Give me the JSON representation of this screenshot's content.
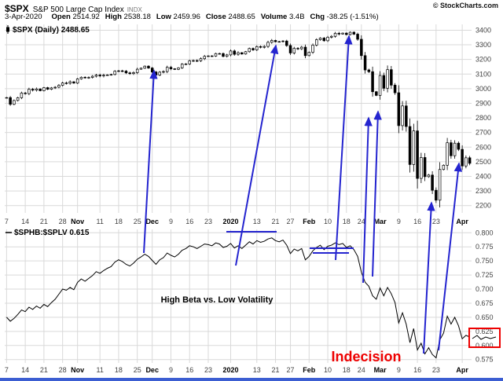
{
  "header": {
    "symbol": "$SPX",
    "name": "S&P 500 Large Cap Index",
    "exchange": "INDX",
    "copyright": "© StockCharts.com",
    "date": "3-Apr-2020",
    "quote": [
      {
        "label": "Open",
        "value": "2514.92"
      },
      {
        "label": "High",
        "value": "2538.18"
      },
      {
        "label": "Low",
        "value": "2459.96"
      },
      {
        "label": "Close",
        "value": "2488.65"
      },
      {
        "label": "Volume",
        "value": "3.4B"
      },
      {
        "label": "Chg",
        "value": "-38.25 (-1.51%)"
      }
    ]
  },
  "chart_data": {
    "type": "multi-panel",
    "num_days": 125,
    "colors": {
      "grid": "#d9d9d9",
      "axis_text": "#444444",
      "month_text": "#000000",
      "series": "#000000",
      "bottom_bar": "#3c5ed2"
    },
    "x_ticks": [
      [
        "7",
        0,
        0
      ],
      [
        "14",
        5,
        0
      ],
      [
        "21",
        10,
        0
      ],
      [
        "28",
        15,
        0
      ],
      [
        "Nov",
        19,
        1
      ],
      [
        "11",
        25,
        0
      ],
      [
        "18",
        30,
        0
      ],
      [
        "25",
        35,
        0
      ],
      [
        "Dec",
        39,
        1
      ],
      [
        "9",
        44,
        0
      ],
      [
        "16",
        49,
        0
      ],
      [
        "23",
        54,
        0
      ],
      [
        "2020",
        60,
        1
      ],
      [
        "13",
        67,
        0
      ],
      [
        "21",
        72,
        0
      ],
      [
        "27",
        76,
        0
      ],
      [
        "Feb",
        81,
        1
      ],
      [
        "10",
        86,
        0
      ],
      [
        "18",
        91,
        0
      ],
      [
        "24",
        95,
        0
      ],
      [
        "Mar",
        100,
        1
      ],
      [
        "9",
        105,
        0
      ],
      [
        "16",
        110,
        0
      ],
      [
        "23",
        115,
        0
      ],
      [
        "Apr",
        122,
        1
      ]
    ],
    "panels": [
      {
        "type": "candlestick",
        "symbol": "$SPX",
        "timeframe": "Daily",
        "legend": "$SPX (Daily) 2488.65",
        "last_close": 2488.65,
        "ylim": [
          2150,
          3440
        ],
        "yticks": [
          "3400",
          "3300",
          "3200",
          "3100",
          "3000",
          "2900",
          "2800",
          "2700",
          "2600",
          "2500",
          "2400",
          "2300",
          "2200"
        ],
        "closes": [
          2939,
          2893,
          2919,
          2938,
          2970,
          2966,
          2996,
          2990,
          2998,
          2986,
          3007,
          2996,
          3005,
          3010,
          3023,
          3039,
          3037,
          3047,
          3038,
          3067,
          3078,
          3075,
          3077,
          3085,
          3093,
          3087,
          3092,
          3094,
          3097,
          3120,
          3122,
          3120,
          3108,
          3103,
          3110,
          3133,
          3140,
          3154,
          3141,
          3114,
          3093,
          3113,
          3117,
          3146,
          3136,
          3132,
          3142,
          3168,
          3169,
          3191,
          3192,
          3191,
          3205,
          3221,
          3224,
          3223,
          3240,
          3240,
          3221,
          3231,
          3258,
          3235,
          3246,
          3237,
          3253,
          3275,
          3265,
          3288,
          3283,
          3289,
          3317,
          3330,
          3321,
          3322,
          3326,
          3295,
          3244,
          3276,
          3273,
          3284,
          3226,
          3249,
          3298,
          3335,
          3346,
          3328,
          3352,
          3358,
          3379,
          3374,
          3380,
          3370,
          3386,
          3373,
          3338,
          3226,
          3128,
          3116,
          2979,
          2954,
          3090,
          3003,
          3130,
          3024,
          2972,
          2747,
          2882,
          2741,
          2481,
          2711,
          2386,
          2529,
          2398,
          2409,
          2305,
          2237,
          2447,
          2476,
          2630,
          2541,
          2627,
          2585,
          2471,
          2527,
          2489
        ]
      },
      {
        "type": "line",
        "symbol": "$SPHB:$SPLV",
        "legend": "$SPHB:$SPLV 0.615",
        "last_value": 0.615,
        "ylim": [
          0.569,
          0.806
        ],
        "yticks": [
          "0.800",
          "0.775",
          "0.750",
          "0.725",
          "0.700",
          "0.675",
          "0.650",
          "0.625",
          "0.600",
          "0.575"
        ],
        "values": [
          0.65,
          0.643,
          0.648,
          0.655,
          0.663,
          0.66,
          0.668,
          0.664,
          0.67,
          0.666,
          0.673,
          0.669,
          0.676,
          0.682,
          0.691,
          0.7,
          0.698,
          0.703,
          0.699,
          0.712,
          0.718,
          0.714,
          0.719,
          0.724,
          0.731,
          0.728,
          0.733,
          0.737,
          0.74,
          0.748,
          0.752,
          0.749,
          0.744,
          0.741,
          0.746,
          0.753,
          0.757,
          0.762,
          0.758,
          0.751,
          0.744,
          0.752,
          0.756,
          0.764,
          0.76,
          0.757,
          0.762,
          0.769,
          0.772,
          0.777,
          0.775,
          0.772,
          0.776,
          0.78,
          0.779,
          0.777,
          0.782,
          0.78,
          0.774,
          0.776,
          0.781,
          0.773,
          0.777,
          0.772,
          0.778,
          0.784,
          0.78,
          0.786,
          0.783,
          0.785,
          0.789,
          0.791,
          0.786,
          0.784,
          0.787,
          0.778,
          0.763,
          0.771,
          0.768,
          0.772,
          0.752,
          0.758,
          0.768,
          0.774,
          0.778,
          0.77,
          0.776,
          0.778,
          0.782,
          0.779,
          0.781,
          0.774,
          0.777,
          0.77,
          0.758,
          0.73,
          0.712,
          0.705,
          0.688,
          0.682,
          0.702,
          0.688,
          0.703,
          0.692,
          0.676,
          0.64,
          0.658,
          0.638,
          0.605,
          0.63,
          0.592,
          0.604,
          0.585,
          0.596,
          0.584,
          0.578,
          0.61,
          0.622,
          0.652,
          0.638,
          0.65,
          0.635,
          0.612,
          0.618,
          0.615
        ]
      }
    ],
    "annotations": {
      "blue": "#2424cf",
      "red": "#ee0000",
      "arrows": [
        [
          183,
          322,
          196,
          90
        ],
        [
          300,
          338,
          351,
          58
        ],
        [
          427,
          331,
          444,
          46
        ],
        [
          462,
          360,
          469,
          150
        ],
        [
          474,
          352,
          481,
          142
        ],
        [
          539,
          450,
          549,
          258
        ],
        [
          558,
          446,
          584,
          208
        ]
      ],
      "hlines": [
        [
          288,
          352,
          295
        ],
        [
          394,
          450,
          316
        ],
        [
          398,
          444,
          322
        ]
      ],
      "red_box": {
        "x": 597,
        "y": 418,
        "w": 39,
        "h": 24
      },
      "box_squiggle": [
        [
          601,
          431
        ],
        [
          607,
          427
        ],
        [
          612,
          432
        ],
        [
          618,
          429
        ],
        [
          624,
          431
        ],
        [
          631,
          429
        ]
      ],
      "indecision": {
        "text": "Indecision",
        "x": 466,
        "y": 460
      },
      "beta_label": {
        "text": "High Beta vs. Low Volatility",
        "x": 276,
        "y": 385
      }
    }
  }
}
